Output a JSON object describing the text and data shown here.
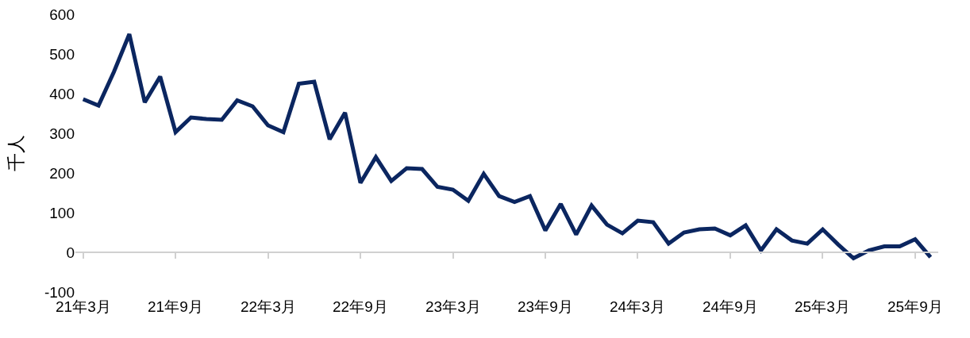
{
  "chart_data": {
    "type": "line",
    "ylabel": "千人",
    "categories": [
      "21年3月",
      null,
      null,
      null,
      null,
      null,
      "21年9月",
      null,
      null,
      null,
      null,
      null,
      "22年3月",
      null,
      null,
      null,
      null,
      null,
      "22年9月",
      null,
      null,
      null,
      null,
      null,
      "23年3月",
      null,
      null,
      null,
      null,
      null,
      "23年9月",
      null,
      null,
      null,
      null,
      null,
      "24年3月",
      null,
      null,
      null,
      null,
      null,
      "24年9月",
      null,
      null,
      null,
      null,
      null,
      "25年3月",
      null,
      null,
      null,
      null,
      null,
      "25年9月",
      null
    ],
    "series": [
      {
        "color": "#0b2660",
        "values": [
          386,
          370,
          455,
          550,
          378,
          443,
          303,
          340,
          336,
          334,
          383,
          368,
          320,
          303,
          425,
          430,
          285,
          352,
          175,
          240,
          180,
          212,
          210,
          165,
          158,
          130,
          198,
          142,
          127,
          142,
          55,
          122,
          45,
          118,
          70,
          48,
          80,
          76,
          22,
          50,
          58,
          60,
          43,
          68,
          5,
          58,
          30,
          22,
          58,
          20,
          -15,
          5,
          15,
          15,
          33,
          -12
        ]
      }
    ],
    "ylim": [
      -100,
      600
    ],
    "yticks": [
      -100,
      0,
      100,
      200,
      300,
      400,
      500,
      600
    ],
    "line_style": "solid",
    "marker": "none"
  }
}
